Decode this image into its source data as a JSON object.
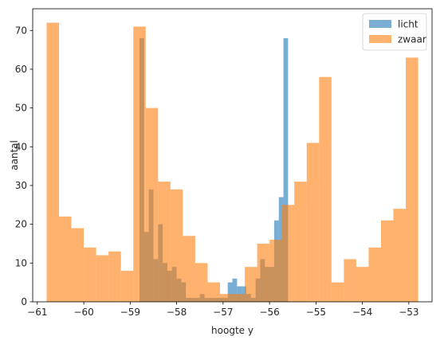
{
  "chart_data": {
    "type": "bar",
    "title": "",
    "xlabel": "hoogte y",
    "ylabel": "aantal",
    "xlim": [
      -61.1,
      -52.5
    ],
    "ylim": [
      0,
      75.6
    ],
    "xticks": [
      -61,
      -60,
      -59,
      -58,
      -57,
      -56,
      -55,
      -54,
      -53
    ],
    "xtick_labels": [
      "−61",
      "−60",
      "−59",
      "−58",
      "−57",
      "−56",
      "−55",
      "−54",
      "−53"
    ],
    "yticks": [
      0,
      10,
      20,
      30,
      40,
      50,
      60,
      70
    ],
    "ytick_labels": [
      "0",
      "10",
      "20",
      "30",
      "40",
      "50",
      "60",
      "70"
    ],
    "grid": false,
    "legend": "top-right",
    "series": [
      {
        "name": "licht",
        "color": "#1f77b4",
        "opacity": 0.6,
        "bin_start": -58.8,
        "bin_width": 0.1,
        "counts": [
          68,
          18,
          29,
          11,
          20,
          10,
          8,
          9,
          6,
          5,
          1,
          1,
          1,
          2,
          1,
          1,
          1,
          1,
          1,
          5,
          6,
          4,
          4,
          2,
          1,
          6,
          11,
          9,
          9,
          21,
          27,
          68
        ]
      },
      {
        "name": "zwaar",
        "color": "#ff7f0e",
        "opacity": 0.6,
        "bin_start": -60.8,
        "bin_width": 0.2667,
        "counts": [
          72,
          22,
          19,
          14,
          12,
          13,
          8,
          71,
          50,
          31,
          29,
          17,
          10,
          5,
          2,
          2,
          9,
          15,
          16,
          25,
          31,
          41,
          58,
          5,
          11,
          9,
          14,
          21,
          24,
          63
        ]
      }
    ]
  }
}
